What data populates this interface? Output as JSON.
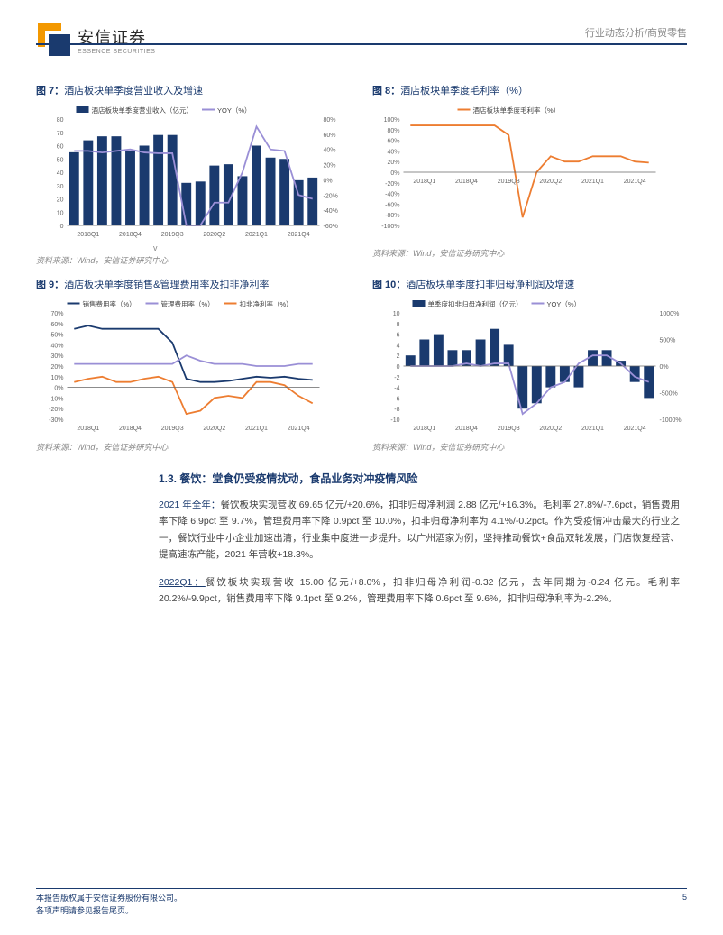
{
  "header": {
    "logo_cn": "安信证券",
    "logo_en": "ESSENCE SECURITIES",
    "right_text": "行业动态分析/商贸零售",
    "logo_colors": {
      "outer": "#f39800",
      "inner": "#1a3a6e"
    }
  },
  "charts": {
    "c7": {
      "title_prefix": "图 7：",
      "title_text": "酒店板块单季度营业收入及增速",
      "caption": "资料来源：Wind，安信证券研究中心",
      "type": "bar+line",
      "legend": [
        {
          "label": "酒店板块单季度营业收入（亿元）",
          "style": "bar",
          "color": "#1a3a6e"
        },
        {
          "label": "YOY（%）",
          "style": "line",
          "color": "#9a8fd6"
        }
      ],
      "x_labels": [
        "2018Q1",
        "2018Q4",
        "2019Q3",
        "2020Q2",
        "2021Q1",
        "2021Q4"
      ],
      "left_axis": {
        "min": 0,
        "max": 80,
        "step": 10
      },
      "right_axis": {
        "min": -60,
        "max": 80,
        "step": 20
      },
      "bars": [
        55,
        64,
        67,
        67,
        56,
        60,
        68,
        68,
        32,
        33,
        45,
        46,
        37,
        60,
        51,
        50,
        34,
        36
      ],
      "line": [
        38,
        38,
        36,
        38,
        40,
        36,
        35,
        35,
        -60,
        -60,
        -30,
        -30,
        10,
        70,
        40,
        38,
        -20,
        -25
      ],
      "bar_color": "#1a3a6e",
      "line_color": "#9a8fd6",
      "background_color": "#ffffff",
      "grid_color": "#d9d9d9"
    },
    "c8": {
      "title_prefix": "图 8：",
      "title_text": "酒店板块单季度毛利率（%）",
      "caption": "资料来源：Wind，安信证券研究中心",
      "type": "line",
      "legend": [
        {
          "label": "酒店板块单季度毛利率（%）",
          "style": "line",
          "color": "#ed7d31"
        }
      ],
      "x_labels": [
        "2018Q1",
        "2018Q4",
        "2019Q3",
        "2020Q2",
        "2021Q1",
        "2021Q4"
      ],
      "y_axis": {
        "min": -100,
        "max": 100,
        "step": 20
      },
      "line": [
        88,
        88,
        88,
        88,
        88,
        88,
        88,
        70,
        -85,
        0,
        30,
        20,
        20,
        30,
        30,
        30,
        20,
        18
      ],
      "line_color": "#ed7d31",
      "background_color": "#ffffff",
      "grid_color": "#d9d9d9"
    },
    "c9": {
      "title_prefix": "图 9：",
      "title_text": "酒店板块单季度销售&管理费用率及扣非净利率",
      "caption": "资料来源：Wind，安信证券研究中心",
      "type": "multi-line",
      "legend": [
        {
          "label": "销售费用率（%）",
          "style": "line",
          "color": "#1a3a6e"
        },
        {
          "label": "管理费用率（%）",
          "style": "line",
          "color": "#9a8fd6"
        },
        {
          "label": "扣非净利率（%）",
          "style": "line",
          "color": "#ed7d31"
        }
      ],
      "x_labels": [
        "2018Q1",
        "2018Q4",
        "2019Q3",
        "2020Q2",
        "2021Q1",
        "2021Q4"
      ],
      "y_axis": {
        "min": -30,
        "max": 70,
        "step": 10
      },
      "lines": {
        "sales": [
          55,
          58,
          55,
          55,
          55,
          55,
          55,
          42,
          8,
          5,
          5,
          6,
          8,
          10,
          9,
          10,
          8,
          7
        ],
        "admin": [
          22,
          22,
          22,
          22,
          22,
          22,
          22,
          22,
          30,
          25,
          22,
          22,
          22,
          20,
          20,
          20,
          22,
          22
        ],
        "netmargin": [
          5,
          8,
          10,
          5,
          5,
          8,
          10,
          5,
          -25,
          -22,
          -10,
          -8,
          -10,
          5,
          5,
          2,
          -8,
          -15
        ]
      },
      "colors": {
        "sales": "#1a3a6e",
        "admin": "#9a8fd6",
        "netmargin": "#ed7d31"
      },
      "background_color": "#ffffff"
    },
    "c10": {
      "title_prefix": "图 10：",
      "title_text": "酒店板块单季度扣非归母净利润及增速",
      "caption": "资料来源：Wind，安信证券研究中心",
      "type": "bar+line",
      "legend": [
        {
          "label": "单季度扣非归母净利润（亿元）",
          "style": "bar",
          "color": "#1a3a6e"
        },
        {
          "label": "YOY（%）",
          "style": "line",
          "color": "#9a8fd6"
        }
      ],
      "x_labels": [
        "2018Q1",
        "2018Q4",
        "2019Q3",
        "2020Q2",
        "2021Q1",
        "2021Q4"
      ],
      "left_axis": {
        "min": -10,
        "max": 10,
        "step": 2
      },
      "right_axis": {
        "min": -1000,
        "max": 1000,
        "step": 500
      },
      "bars": [
        2,
        5,
        6,
        3,
        3,
        5,
        7,
        4,
        -8,
        -7,
        -4,
        -3,
        -4,
        3,
        3,
        1,
        -3,
        -6
      ],
      "line": [
        0,
        0,
        0,
        0,
        50,
        0,
        50,
        50,
        -900,
        -700,
        -400,
        -300,
        50,
        200,
        200,
        50,
        -200,
        -300
      ],
      "bar_color": "#1a3a6e",
      "line_color": "#9a8fd6",
      "background_color": "#ffffff"
    }
  },
  "v_mark": "v",
  "section": {
    "heading": "1.3. 餐饮：堂食仍受疫情扰动，食品业务对冲疫情风险",
    "p1_ul": "2021 年全年：",
    "p1": "餐饮板块实现营收 69.65 亿元/+20.6%，扣非归母净利润 2.88 亿元/+16.3%。毛利率 27.8%/-7.6pct，销售费用率下降 6.9pct 至 9.7%，管理费用率下降 0.9pct 至 10.0%，扣非归母净利率为 4.1%/-0.2pct。作为受疫情冲击最大的行业之一，餐饮行业中小企业加速出清，行业集中度进一步提升。以广州酒家为例，坚持推动餐饮+食品双轮发展，门店恢复经营、提高速冻产能，2021 年营收+18.3%。",
    "p2_ul": "2022Q1：",
    "p2": "餐饮板块实现营收 15.00 亿元/+8.0%，扣非归母净利润-0.32 亿元，去年同期为-0.24 亿元。毛利率 20.2%/-9.9pct，销售费用率下降 9.1pct 至 9.2%，管理费用率下降 0.6pct 至 9.6%，扣非归母净利率为-2.2%。"
  },
  "footer": {
    "line1": "本报告版权属于安信证券股份有限公司。",
    "line2": "各项声明请参见报告尾页。",
    "page": "5"
  },
  "palette": {
    "brand_navy": "#1a3a6e",
    "brand_orange": "#f39800",
    "chart_orange": "#ed7d31",
    "chart_purple": "#9a8fd6",
    "grid": "#d9d9d9"
  }
}
